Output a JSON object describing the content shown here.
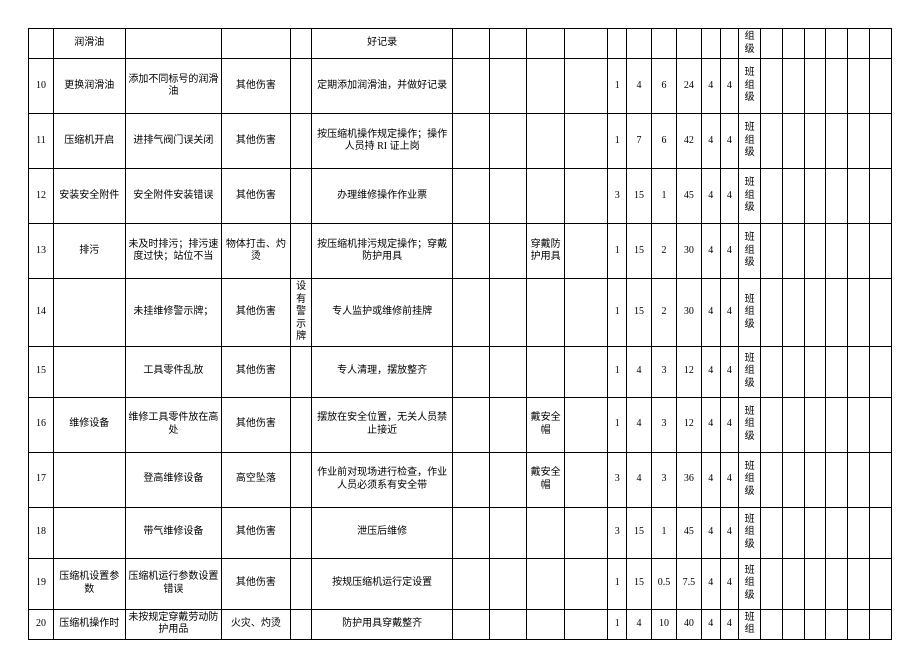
{
  "rows": [
    {
      "n": "",
      "a": "润滑油",
      "b": "",
      "c": "",
      "d": "",
      "e": "好记录",
      "f": "",
      "g": "",
      "h": "",
      "i": "",
      "j": "",
      "k": "",
      "l": "",
      "m": "",
      "nn": "",
      "o": "",
      "p": "组级",
      "q": "",
      "r": "",
      "s": "",
      "t": "",
      "u": "",
      "v": ""
    },
    {
      "n": "10",
      "a": "更换润滑油",
      "b": "添加不同标号的润滑油",
      "c": "其他伤害",
      "d": "",
      "e": "定期添加润滑油，并做好记录",
      "f": "",
      "g": "",
      "h": "",
      "i": "",
      "j": "1",
      "k": "4",
      "l": "6",
      "m": "24",
      "nn": "4",
      "o": "4",
      "p": "班组级",
      "q": "",
      "r": "",
      "s": "",
      "t": "",
      "u": "",
      "v": ""
    },
    {
      "n": "11",
      "a": "压缩机开启",
      "b": "进排气阀门误关闭",
      "c": "其他伤害",
      "d": "",
      "e": "按压缩机操作规定操作；操作人员持 RI 证上岗",
      "f": "",
      "g": "",
      "h": "",
      "i": "",
      "j": "1",
      "k": "7",
      "l": "6",
      "m": "42",
      "nn": "4",
      "o": "4",
      "p": "班组级",
      "q": "",
      "r": "",
      "s": "",
      "t": "",
      "u": "",
      "v": ""
    },
    {
      "n": "12",
      "a": "安装安全附件",
      "b": "安全附件安装错误",
      "c": "其他伤害",
      "d": "",
      "e": "办理维修操作作业票",
      "f": "",
      "g": "",
      "h": "",
      "i": "",
      "j": "3",
      "k": "15",
      "l": "1",
      "m": "45",
      "nn": "4",
      "o": "4",
      "p": "班组级",
      "q": "",
      "r": "",
      "s": "",
      "t": "",
      "u": "",
      "v": ""
    },
    {
      "n": "13",
      "a": "排污",
      "b": "未及时排污；排污速度过快；站位不当",
      "c": "物体打击、灼烫",
      "d": "",
      "e": "按压缩机排污规定操作；穿戴防护用具",
      "f": "",
      "g": "",
      "h": "穿戴防护用具",
      "i": "",
      "j": "1",
      "k": "15",
      "l": "2",
      "m": "30",
      "nn": "4",
      "o": "4",
      "p": "班组级",
      "q": "",
      "r": "",
      "s": "",
      "t": "",
      "u": "",
      "v": ""
    },
    {
      "n": "14",
      "a": "",
      "b": "未挂维修警示牌；",
      "c": "其他伤害",
      "d": "设有警示牌",
      "e": "专人监护或维修前挂牌",
      "f": "",
      "g": "",
      "h": "",
      "i": "",
      "j": "1",
      "k": "15",
      "l": "2",
      "m": "30",
      "nn": "4",
      "o": "4",
      "p": "班组级",
      "q": "",
      "r": "",
      "s": "",
      "t": "",
      "u": "",
      "v": ""
    },
    {
      "n": "15",
      "a": "",
      "b": "工具零件乱放",
      "c": "其他伤害",
      "d": "",
      "e": "专人清理，摆放整齐",
      "f": "",
      "g": "",
      "h": "",
      "i": "",
      "j": "1",
      "k": "4",
      "l": "3",
      "m": "12",
      "nn": "4",
      "o": "4",
      "p": "班组级",
      "q": "",
      "r": "",
      "s": "",
      "t": "",
      "u": "",
      "v": ""
    },
    {
      "n": "16",
      "a": "维修设备",
      "b": "维修工具零件放在高处",
      "c": "其他伤害",
      "d": "",
      "e": "摆放在安全位置，无关人员禁止接近",
      "f": "",
      "g": "",
      "h": "戴安全帽",
      "i": "",
      "j": "1",
      "k": "4",
      "l": "3",
      "m": "12",
      "nn": "4",
      "o": "4",
      "p": "班组级",
      "q": "",
      "r": "",
      "s": "",
      "t": "",
      "u": "",
      "v": ""
    },
    {
      "n": "17",
      "a": "",
      "b": "登高维修设备",
      "c": "高空坠落",
      "d": "",
      "e": "作业前对现场进行检查，作业人员必须系有安全带",
      "f": "",
      "g": "",
      "h": "戴安全帽",
      "i": "",
      "j": "3",
      "k": "4",
      "l": "3",
      "m": "36",
      "nn": "4",
      "o": "4",
      "p": "班组级",
      "q": "",
      "r": "",
      "s": "",
      "t": "",
      "u": "",
      "v": ""
    },
    {
      "n": "18",
      "a": "",
      "b": "带气维修设备",
      "c": "其他伤害",
      "d": "",
      "e": "泄压后维修",
      "f": "",
      "g": "",
      "h": "",
      "i": "",
      "j": "3",
      "k": "15",
      "l": "1",
      "m": "45",
      "nn": "4",
      "o": "4",
      "p": "班组级",
      "q": "",
      "r": "",
      "s": "",
      "t": "",
      "u": "",
      "v": ""
    },
    {
      "n": "19",
      "a": "压缩机设置参数",
      "b": "压缩机运行参数设置错误",
      "c": "其他伤害",
      "d": "",
      "e": "按规压缩机运行定设置",
      "f": "",
      "g": "",
      "h": "",
      "i": "",
      "j": "1",
      "k": "15",
      "l": "0.5",
      "m": "7.5",
      "nn": "4",
      "o": "4",
      "p": "班组级",
      "q": "",
      "r": "",
      "s": "",
      "t": "",
      "u": "",
      "v": ""
    },
    {
      "n": "20",
      "a": "压缩机操作时",
      "b": "未按规定穿戴劳动防护用品",
      "c": "火灾、灼烫",
      "d": "",
      "e": "防护用具穿戴整齐",
      "f": "",
      "g": "",
      "h": "",
      "i": "",
      "j": "1",
      "k": "4",
      "l": "10",
      "m": "40",
      "nn": "4",
      "o": "4",
      "p": "班组",
      "q": "",
      "r": "",
      "s": "",
      "t": "",
      "u": "",
      "v": ""
    }
  ],
  "rowClass": [
    "",
    "tall",
    "tall",
    "tall",
    "tall",
    "tall",
    "med",
    "tall",
    "tall",
    "med",
    "med",
    ""
  ]
}
